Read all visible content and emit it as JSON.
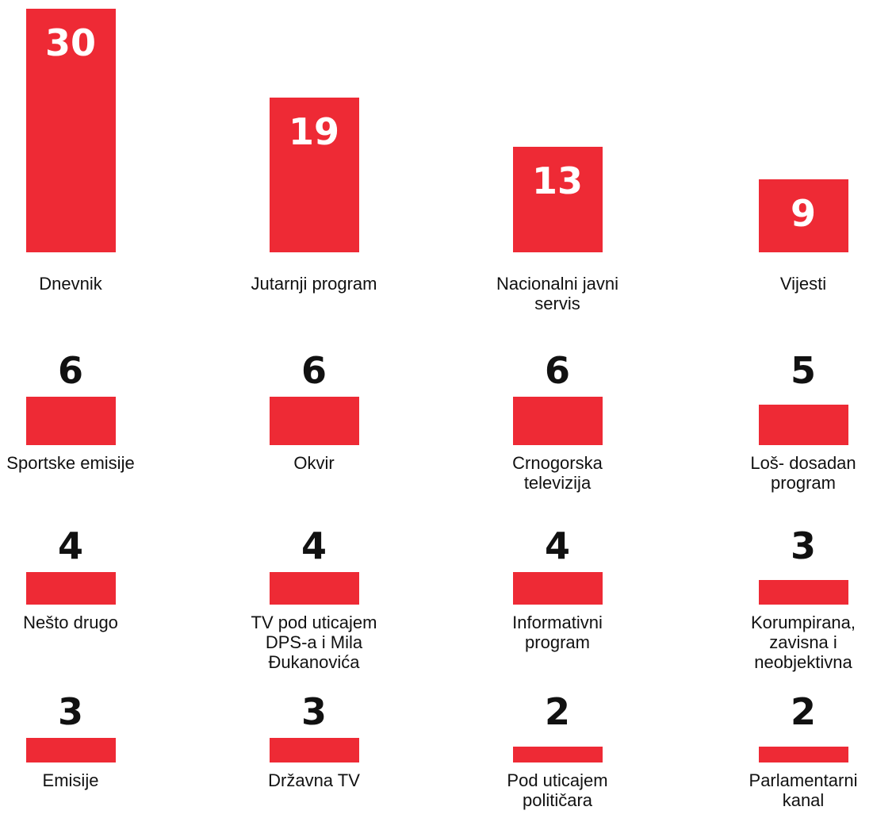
{
  "chart_data": {
    "type": "bar",
    "color": "#ee2a35",
    "categories": [
      "Dnevnik",
      "Jutarnji program",
      "Nacionalni javni servis",
      "Vijesti",
      "Sportske emisije",
      "Okvir",
      "Crnogorska televizija",
      "Loš- dosadan program",
      "Nešto drugo",
      "TV pod uticajem DPS-a i Mila Đukanovića",
      "Informativni program",
      "Korumpirana, zavisna i neobjektivna",
      "Emisije",
      "Državna TV",
      "Pod uticajem političara",
      "Parlamentarni kanal"
    ],
    "values": [
      30,
      19,
      13,
      9,
      6,
      6,
      6,
      5,
      4,
      4,
      4,
      3,
      3,
      3,
      2,
      2
    ]
  }
}
